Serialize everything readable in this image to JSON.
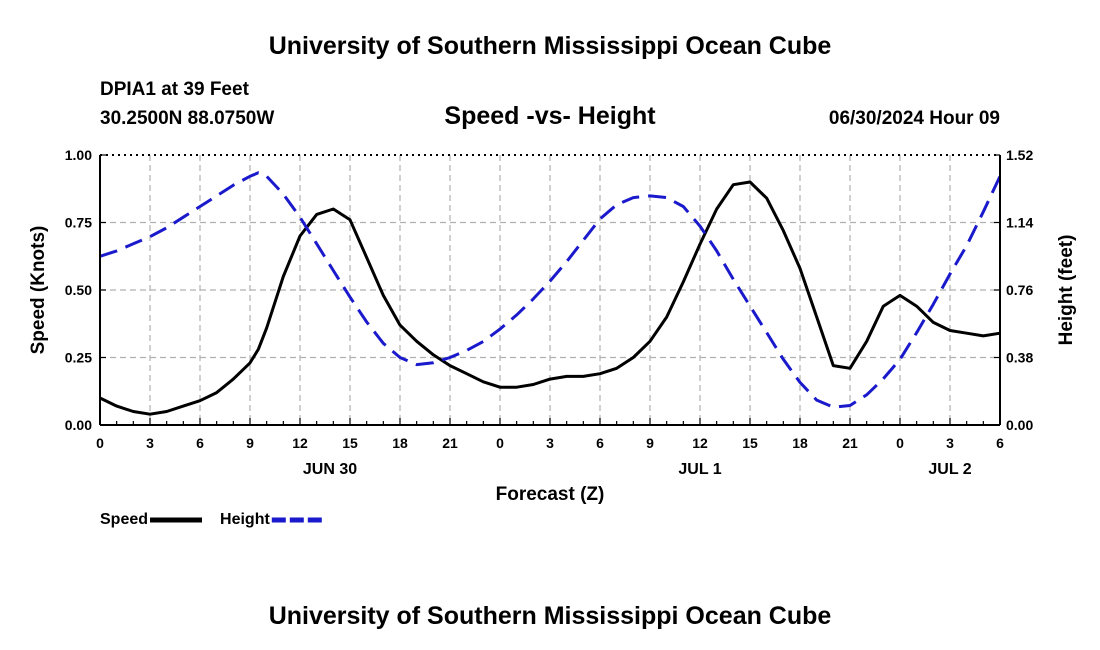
{
  "page": {
    "title_top": "University of Southern Mississippi Ocean Cube",
    "title_bottom": "University of Southern Mississippi Ocean Cube",
    "station": "DPIA1 at 39 Feet",
    "coords": "30.2500N  88.0750W",
    "timestamp": "06/30/2024 Hour 09"
  },
  "chart_data": {
    "type": "line",
    "title": "Speed -vs- Height",
    "xlabel": "Forecast (Z)",
    "ylabel_left": "Speed (Knots)",
    "ylabel_right": "Height (feet)",
    "x_range": [
      0,
      54
    ],
    "ylim_left": [
      0,
      1
    ],
    "ylim_right": [
      0,
      1.52
    ],
    "x_ticks": [
      0,
      3,
      6,
      9,
      12,
      15,
      18,
      21,
      24,
      27,
      30,
      33,
      36,
      39,
      42,
      45,
      48,
      51,
      54
    ],
    "x_tick_labels": [
      "0",
      "3",
      "6",
      "9",
      "12",
      "15",
      "18",
      "21",
      "0",
      "3",
      "6",
      "9",
      "12",
      "15",
      "18",
      "21",
      "0",
      "3",
      "6"
    ],
    "y_left_ticks": [
      0,
      0.25,
      0.5,
      0.75,
      1.0
    ],
    "y_left_tick_labels": [
      "0.00",
      "0.25",
      "0.50",
      "0.75",
      "1.00"
    ],
    "y_right_ticks": [
      0,
      0.38,
      0.76,
      1.14,
      1.52
    ],
    "y_right_tick_labels": [
      "0.00",
      "0.38",
      "0.76",
      "1.14",
      "1.52"
    ],
    "dates": [
      {
        "x": 13.8,
        "label": "JUN 30"
      },
      {
        "x": 36,
        "label": "JUL 1"
      },
      {
        "x": 51,
        "label": "JUL 2"
      }
    ],
    "grid": true,
    "colors": {
      "speed": "#000000",
      "height": "#1a1acc",
      "grid": "#b0b0b0"
    },
    "series": [
      {
        "name": "Speed",
        "axis": "left",
        "style": "solid",
        "x": [
          0,
          1,
          2,
          3,
          4,
          5,
          6,
          7,
          8,
          9,
          9.5,
          10,
          11,
          12,
          13,
          14,
          15,
          16,
          17,
          18,
          19,
          20,
          21,
          22,
          23,
          24,
          25,
          26,
          27,
          28,
          29,
          30,
          31,
          32,
          33,
          34,
          35,
          36,
          37,
          38,
          39,
          40,
          41,
          42,
          43,
          44,
          45,
          46,
          47,
          48,
          49,
          50,
          51,
          52,
          53,
          54
        ],
        "values": [
          0.1,
          0.07,
          0.05,
          0.04,
          0.05,
          0.07,
          0.09,
          0.12,
          0.17,
          0.23,
          0.28,
          0.36,
          0.55,
          0.7,
          0.78,
          0.8,
          0.76,
          0.62,
          0.48,
          0.37,
          0.31,
          0.26,
          0.22,
          0.19,
          0.16,
          0.14,
          0.14,
          0.15,
          0.17,
          0.18,
          0.18,
          0.19,
          0.21,
          0.25,
          0.31,
          0.4,
          0.53,
          0.67,
          0.8,
          0.89,
          0.9,
          0.84,
          0.72,
          0.58,
          0.4,
          0.22,
          0.21,
          0.31,
          0.44,
          0.48,
          0.44,
          0.38,
          0.35,
          0.34,
          0.33,
          0.34
        ]
      },
      {
        "name": "Height",
        "axis": "right",
        "style": "dashed",
        "x": [
          0,
          1,
          2,
          3,
          4,
          5,
          6,
          7,
          8,
          9,
          9.5,
          10,
          11,
          12,
          13,
          14,
          15,
          16,
          17,
          18,
          19,
          20,
          21,
          22,
          23,
          24,
          25,
          26,
          27,
          28,
          29,
          30,
          31,
          32,
          33,
          34,
          35,
          36,
          37,
          38,
          39,
          40,
          41,
          42,
          43,
          44,
          45,
          46,
          47,
          48,
          49,
          50,
          51,
          52,
          53,
          54
        ],
        "values": [
          0.95,
          0.98,
          1.02,
          1.06,
          1.11,
          1.17,
          1.23,
          1.29,
          1.35,
          1.4,
          1.42,
          1.4,
          1.3,
          1.17,
          1.02,
          0.87,
          0.72,
          0.58,
          0.46,
          0.38,
          0.34,
          0.35,
          0.38,
          0.42,
          0.47,
          0.54,
          0.62,
          0.71,
          0.81,
          0.92,
          1.04,
          1.16,
          1.24,
          1.28,
          1.29,
          1.28,
          1.23,
          1.12,
          0.98,
          0.82,
          0.67,
          0.52,
          0.37,
          0.24,
          0.14,
          0.1,
          0.11,
          0.17,
          0.26,
          0.37,
          0.52,
          0.68,
          0.85,
          1.01,
          1.2,
          1.4
        ]
      }
    ],
    "legend": [
      {
        "name": "Speed",
        "style": "solid"
      },
      {
        "name": "Height",
        "style": "dashed"
      }
    ]
  }
}
